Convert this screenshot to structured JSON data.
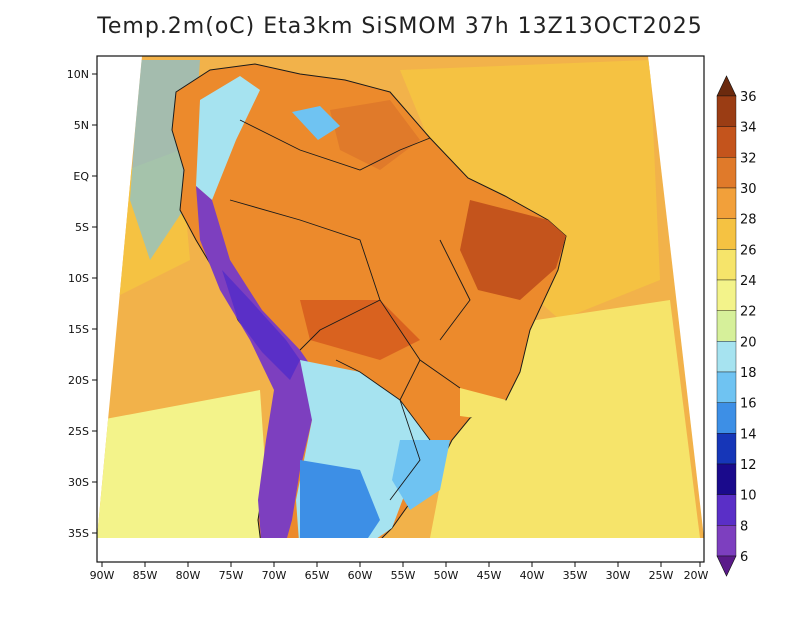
{
  "title": "Temp.2m(oC) Eta3km SiSMOM 37h 13Z13OCT2025",
  "lat_labels": [
    "10N",
    "5N",
    "EQ",
    "5S",
    "10S",
    "15S",
    "20S",
    "25S",
    "30S",
    "35S"
  ],
  "lon_labels": [
    "90W",
    "85W",
    "80W",
    "75W",
    "70W",
    "65W",
    "60W",
    "55W",
    "50W",
    "45W",
    "40W",
    "35W",
    "30W",
    "25W",
    "20W"
  ],
  "colorbar": {
    "labels": [
      "36",
      "34",
      "32",
      "30",
      "28",
      "26",
      "24",
      "22",
      "20",
      "18",
      "16",
      "14",
      "12",
      "10",
      "8",
      "6"
    ],
    "colors": [
      "#6b2a0e",
      "#9b3d14",
      "#c4541c",
      "#e07a2a",
      "#f2a03a",
      "#f5c242",
      "#f6e46a",
      "#f3f38a",
      "#d6f09a",
      "#a6e3f0",
      "#6fc3f2",
      "#3d8fe6",
      "#1636b8",
      "#1a0a8c",
      "#5a2fc7",
      "#7d3fbf",
      "#5a1a8a"
    ]
  },
  "colors": {
    "ocean": "#f2b24a",
    "ocean_warm": "#f2a03a",
    "land": "#ec8a2c",
    "land_hot": "#d9621f",
    "highlands": "#6fc3f2",
    "andes": "#7d3fbf",
    "south_cool": "#a6e3f0",
    "south_ocean": "#f6e46a"
  }
}
